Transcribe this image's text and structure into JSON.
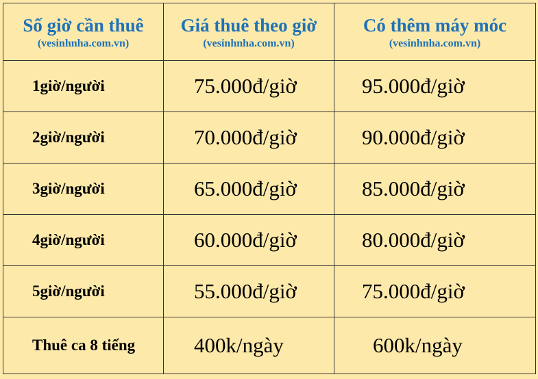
{
  "table": {
    "header": [
      {
        "title": "Số giờ cần thuê",
        "subtitle": "(vesinhnha.com.vn)"
      },
      {
        "title": "Giá thuê theo giờ",
        "subtitle": "(vesinhnha.com.vn)"
      },
      {
        "title": "Có thêm máy móc",
        "subtitle": "(vesinhnha.com.vn)"
      }
    ],
    "rows": [
      [
        "1giờ/người",
        "75.000đ/giờ",
        "95.000đ/giờ"
      ],
      [
        "2giờ/người",
        "70.000đ/giờ",
        "90.000đ/giờ"
      ],
      [
        "3giờ/người",
        "65.000đ/giờ",
        "85.000đ/giờ"
      ],
      [
        "4giờ/người",
        "60.000đ/giờ",
        "80.000đ/giờ"
      ],
      [
        "5giờ/người",
        "55.000đ/giờ",
        "75.000đ/giờ"
      ],
      [
        "Thuê ca 8 tiếng",
        "400k/ngày",
        "600k/ngày"
      ]
    ]
  }
}
